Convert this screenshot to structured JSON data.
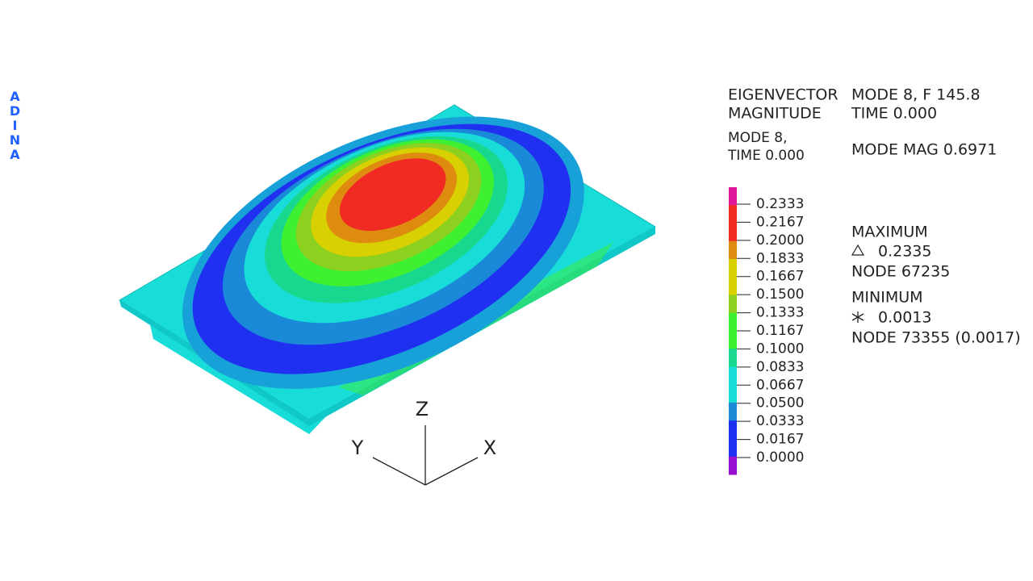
{
  "brand": "ADINA",
  "header": {
    "quantity": [
      "EIGENVECTOR",
      "MAGNITUDE"
    ],
    "mode": [
      "MODE 8, F 145.8",
      "TIME 0.000"
    ]
  },
  "subtitle": [
    "MODE 8,",
    "TIME 0.000"
  ],
  "mode_mag": "MODE MAG 0.6971",
  "legend": {
    "ticks": [
      "0.2333",
      "0.2167",
      "0.2000",
      "0.1833",
      "0.1667",
      "0.1500",
      "0.1333",
      "0.1167",
      "0.1000",
      "0.0833",
      "0.0667",
      "0.0500",
      "0.0333",
      "0.0167",
      "0.0000"
    ],
    "colors": [
      "#e0159a",
      "#f22a24",
      "#f22a24",
      "#de8c10",
      "#d8d000",
      "#d8d000",
      "#8ed020",
      "#3ef030",
      "#3ef030",
      "#18d890",
      "#18dcd8",
      "#18dcd8",
      "#1a8ad8",
      "#2030f0",
      "#2030f0",
      "#9a10d0"
    ]
  },
  "maximum": {
    "title": "MAXIMUM",
    "value": "0.2335",
    "node": "NODE 67235"
  },
  "minimum": {
    "title": "MINIMUM",
    "value": "0.0013",
    "node": "NODE 73355 (0.0017)"
  },
  "triad": {
    "z": "Z",
    "y": "Y",
    "x": "X"
  }
}
